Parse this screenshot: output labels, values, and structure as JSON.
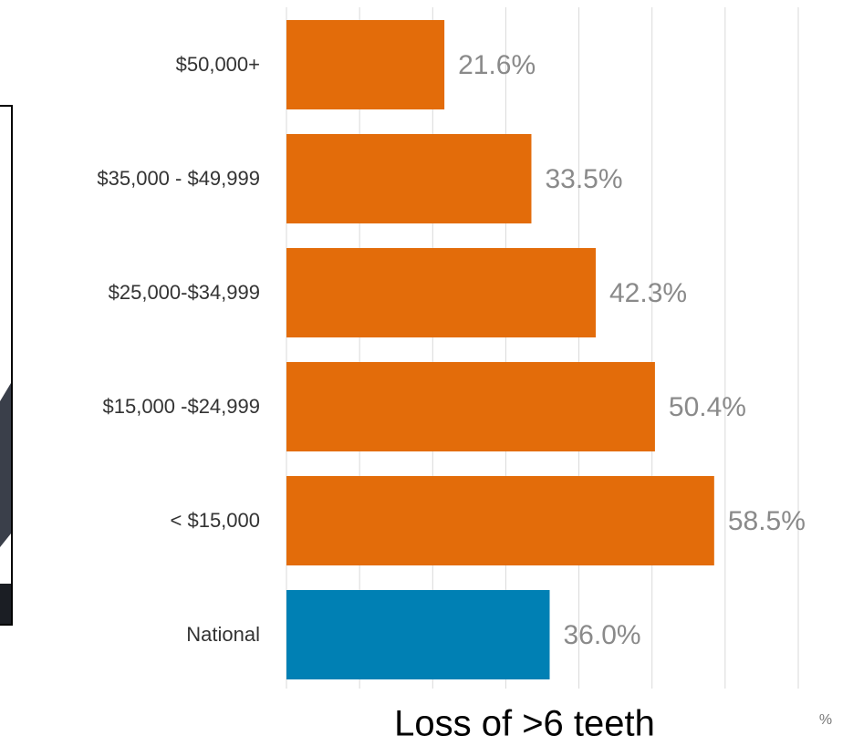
{
  "chart_data": {
    "type": "barh",
    "categories": [
      "$50,000+",
      "$35,000 - $49,999",
      "$25,000-$34,999",
      "$15,000 -$24,999",
      "< $15,000",
      "National"
    ],
    "values": [
      21.6,
      33.5,
      42.3,
      50.4,
      58.5,
      36.0
    ],
    "value_labels": [
      "21.6%",
      "33.5%",
      "42.3%",
      "50.4%",
      "58.5%",
      "36.0%"
    ],
    "colors": [
      "#e36c0a",
      "#e36c0a",
      "#e36c0a",
      "#e36c0a",
      "#e36c0a",
      "#0080b4"
    ],
    "xlim": [
      0,
      70
    ],
    "xticks": [
      0,
      10,
      20,
      30,
      40,
      50,
      60,
      70
    ],
    "grid": true,
    "x_label": "Loss of >6 teeth",
    "x_unit_fragment": "%"
  }
}
